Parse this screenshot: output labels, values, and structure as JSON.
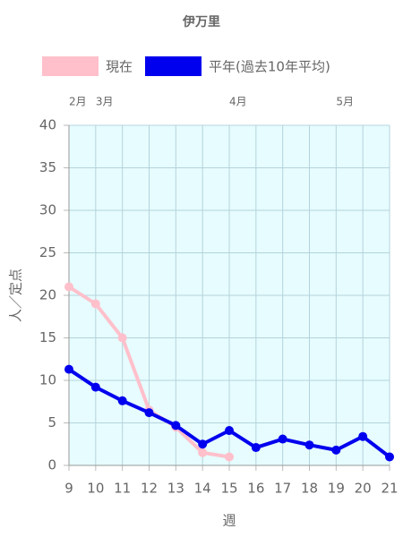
{
  "chart_data": {
    "type": "line",
    "title": "伊万里",
    "x_label": "週",
    "y_label": "人／定点",
    "x": [
      9,
      10,
      11,
      12,
      13,
      14,
      15,
      16,
      17,
      18,
      19,
      20,
      21
    ],
    "series": [
      {
        "name": "現在",
        "color": "#ffc0cb",
        "values": [
          21,
          19,
          15,
          6.5,
          4.5,
          1.5,
          1.0,
          null,
          null,
          null,
          null,
          null,
          null
        ]
      },
      {
        "name": "平年(過去10年平均)",
        "color": "#0000ee",
        "values": [
          11.3,
          9.2,
          7.6,
          6.2,
          4.7,
          2.5,
          4.1,
          2.1,
          3.1,
          2.4,
          1.8,
          3.4,
          1.0
        ]
      }
    ],
    "xlim": [
      9,
      21
    ],
    "xticks": [
      9,
      10,
      11,
      12,
      13,
      14,
      15,
      16,
      17,
      18,
      19,
      20,
      21
    ],
    "ylim": [
      0,
      40
    ],
    "yticks": [
      0,
      5,
      10,
      15,
      20,
      25,
      30,
      35,
      40
    ],
    "month_ticks": [
      {
        "value": 9,
        "label": "2月"
      },
      {
        "value": 10,
        "label": "3月"
      },
      {
        "value": 15,
        "label": "4月"
      },
      {
        "value": 19,
        "label": "5月"
      }
    ],
    "grid": true,
    "background": "#e6fcfe"
  }
}
